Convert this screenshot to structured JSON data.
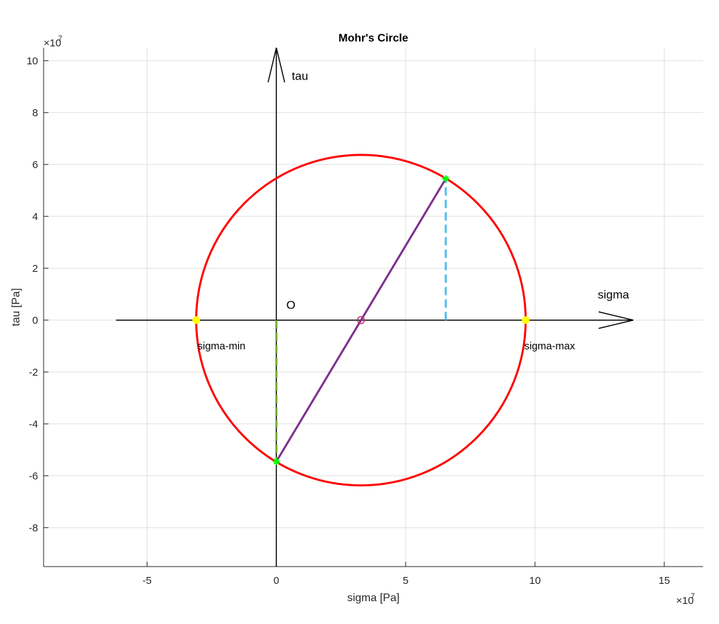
{
  "chart_data": {
    "type": "line",
    "title": "Mohr's Circle",
    "xlabel": "sigma [Pa]",
    "ylabel": "tau [Pa]",
    "x_exponent_label": "×10",
    "x_exponent_power": "7",
    "y_exponent_label": "×10",
    "y_exponent_power": "7",
    "scale_factor": 10000000,
    "xlim": [
      -9,
      16.5
    ],
    "ylim": [
      -9.5,
      10.5
    ],
    "xticks": [
      -5,
      0,
      5,
      10,
      15
    ],
    "xtick_labels": [
      "-5",
      "0",
      "5",
      "10",
      "15"
    ],
    "yticks": [
      -8,
      -6,
      -4,
      -2,
      0,
      2,
      4,
      6,
      8,
      10
    ],
    "ytick_labels": [
      "-8",
      "-6",
      "-4",
      "-2",
      "0",
      "2",
      "4",
      "6",
      "8",
      "10"
    ],
    "grid": true,
    "circle": {
      "center_x": 3.27,
      "center_y": 0,
      "radius": 6.37,
      "color": "#ff0000"
    },
    "center_marker": {
      "x": 3.27,
      "y": 0,
      "color": "#c0306a"
    },
    "principal_points": [
      {
        "x": -3.1,
        "y": 0,
        "label": "sigma-min",
        "color": "#ffff00"
      },
      {
        "x": 9.64,
        "y": 0,
        "label": "sigma-max",
        "color": "#ffff00"
      }
    ],
    "stress_points": [
      {
        "x": 6.55,
        "y": 5.45,
        "color": "#00ff00"
      },
      {
        "x": 0,
        "y": -5.45,
        "color": "#00ff00"
      }
    ],
    "diameter_line": {
      "x": [
        0,
        6.55
      ],
      "y": [
        -5.45,
        5.45
      ],
      "color": "#7e2f8e"
    },
    "dashed_lines": [
      {
        "x": [
          6.55,
          6.55
        ],
        "y": [
          0,
          5.45
        ],
        "color": "#4dbeee"
      },
      {
        "x": [
          0,
          0
        ],
        "y": [
          0,
          -5.45
        ],
        "color": "#77ac30"
      }
    ],
    "annotations": {
      "origin_label": "O",
      "origin_pos": [
        0.6,
        0.6
      ],
      "sigma_arrow": {
        "x0": -6.2,
        "x1": 13.8,
        "y": 0,
        "label": "sigma",
        "label_pos": [
          12.8,
          0.7
        ]
      },
      "tau_arrow": {
        "x": 0,
        "y0": -9.5,
        "y1": 10.5,
        "label": "tau",
        "label_pos": [
          0.65,
          9.4
        ]
      }
    },
    "colors": {
      "axes": "#262626",
      "grid": "#dfdfdf",
      "arrows": "#000000"
    }
  }
}
